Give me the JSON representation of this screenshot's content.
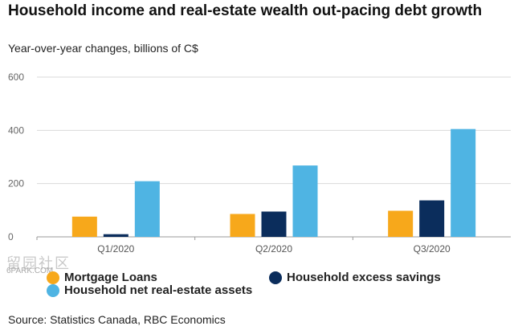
{
  "title": "Household income and real-estate wealth out-pacing debt growth",
  "subtitle": "Year-over-year changes, billions of C$",
  "source": "Source: Statistics Canada, RBC Economics",
  "watermark": {
    "glyphs": "留园社区",
    "text": "6PARK.COM"
  },
  "chart_data": {
    "type": "bar",
    "categories": [
      "Q1/2020",
      "Q2/2020",
      "Q3/2020"
    ],
    "series": [
      {
        "name": "Mortgage Loans",
        "color": "#f7a81b",
        "values": [
          76,
          86,
          98
        ]
      },
      {
        "name": "Household excess savings",
        "color": "#0b2d5c",
        "values": [
          10,
          95,
          137
        ]
      },
      {
        "name": "Household net real-estate assets",
        "color": "#4fb4e3",
        "values": [
          209,
          268,
          405
        ]
      }
    ],
    "ylim": [
      0,
      600
    ],
    "yticks": [
      0,
      200,
      400,
      600
    ],
    "grid": true,
    "legend": "bottom-left"
  }
}
